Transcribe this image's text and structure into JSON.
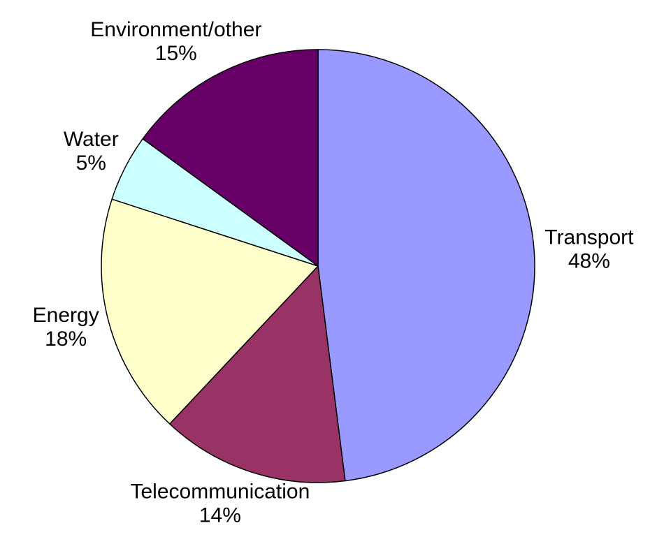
{
  "chart_data": {
    "type": "pie",
    "categories": [
      "Transport",
      "Telecommunication",
      "Energy",
      "Water",
      "Environment/other"
    ],
    "values": [
      48,
      14,
      18,
      5,
      15
    ],
    "value_labels": [
      "48%",
      "14%",
      "18%",
      "5%",
      "15%"
    ],
    "colors": [
      "#9999ff",
      "#993366",
      "#ffffcc",
      "#ccffff",
      "#660066"
    ]
  }
}
